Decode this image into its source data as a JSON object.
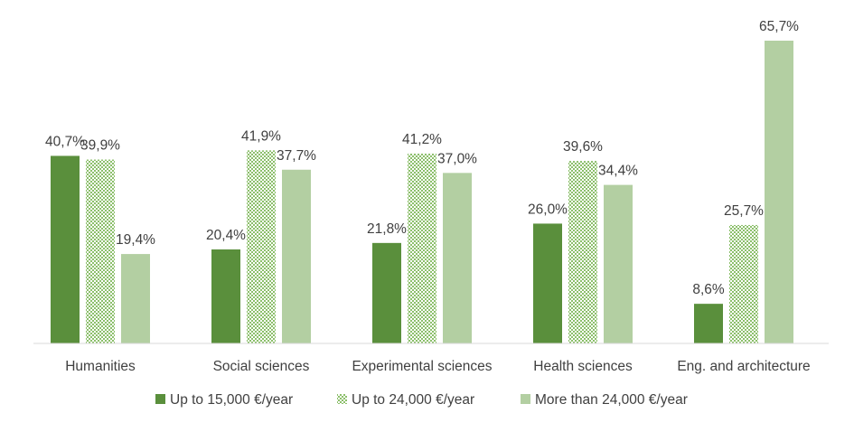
{
  "chart_data": {
    "type": "bar",
    "title": "",
    "xlabel": "",
    "ylabel": "",
    "ylim": [
      0,
      70
    ],
    "grid": false,
    "legend_position": "bottom",
    "categories": [
      "Humanities",
      "Social sciences",
      "Experimental sciences",
      "Health sciences",
      "Eng. and architecture"
    ],
    "series": [
      {
        "name": "Up to 15,000 €/year",
        "values": [
          40.7,
          20.4,
          21.8,
          26.0,
          8.6
        ],
        "labels": [
          "40,7%",
          "20,4%",
          "21,8%",
          "26,0%",
          "8,6%"
        ],
        "color": "#5a8f3c",
        "pattern": "solid"
      },
      {
        "name": "Up to 24,000 €/year",
        "values": [
          39.9,
          41.9,
          41.2,
          39.6,
          25.7
        ],
        "labels": [
          "39,9%",
          "41,9%",
          "41,2%",
          "39,6%",
          "25,7%"
        ],
        "color": "#8cbf6b",
        "pattern": "checker"
      },
      {
        "name": "More than 24,000 €/year",
        "values": [
          19.4,
          37.7,
          37.0,
          34.4,
          65.7
        ],
        "labels": [
          "19,4%",
          "37,7%",
          "37,0%",
          "34,4%",
          "65,7%"
        ],
        "color": "#b3cfa2",
        "pattern": "solid"
      }
    ]
  }
}
